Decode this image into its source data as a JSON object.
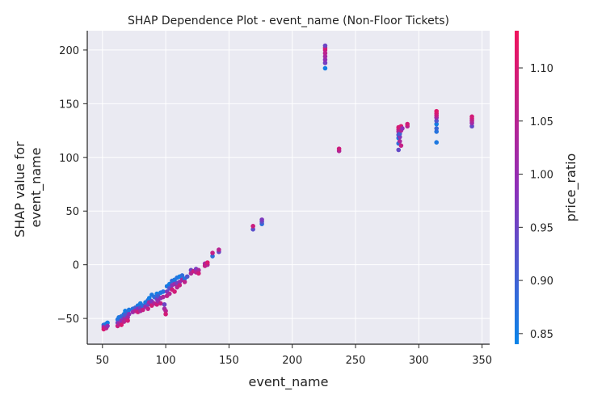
{
  "chart_data": {
    "type": "scatter",
    "title": "SHAP Dependence Plot - event_name (Non-Floor Tickets)",
    "xlabel": "event_name",
    "ylabel_lines": [
      "SHAP value for",
      "event_name"
    ],
    "xlim": [
      38,
      356
    ],
    "ylim": [
      -74,
      218
    ],
    "x_ticks": [
      50,
      100,
      150,
      200,
      250,
      300,
      350
    ],
    "y_ticks": [
      -50,
      0,
      50,
      100,
      150,
      200
    ],
    "grid": true,
    "colorbar": {
      "label": "price_ratio",
      "range": [
        0.84,
        1.135
      ],
      "ticks": [
        0.85,
        0.9,
        0.95,
        1.0,
        1.05,
        1.1
      ],
      "tick_labels": [
        "0.85",
        "0.90",
        "0.95",
        "1.00",
        "1.05",
        "1.10"
      ],
      "color_low": "#0a84e8",
      "color_mid": "#8e2fb8",
      "color_high": "#f0135c"
    },
    "points": [
      [
        51,
        -56,
        0.88
      ],
      [
        51,
        -58,
        1.02
      ],
      [
        51,
        -60,
        1.1
      ],
      [
        53,
        -55,
        0.86
      ],
      [
        53,
        -59,
        1.05
      ],
      [
        54,
        -54,
        0.85
      ],
      [
        54,
        -57,
        1.0
      ],
      [
        62,
        -51,
        0.87
      ],
      [
        62,
        -54,
        0.95
      ],
      [
        62,
        -57,
        1.08
      ],
      [
        63,
        -49,
        0.86
      ],
      [
        63,
        -55,
        1.03
      ],
      [
        65,
        -48,
        0.88
      ],
      [
        65,
        -52,
        1.0
      ],
      [
        65,
        -56,
        1.1
      ],
      [
        67,
        -46,
        0.86
      ],
      [
        67,
        -50,
        0.97
      ],
      [
        67,
        -53,
        1.06
      ],
      [
        68,
        -43,
        0.85
      ],
      [
        68,
        -47,
        0.92
      ],
      [
        68,
        -51,
        1.04
      ],
      [
        70,
        -44,
        0.89
      ],
      [
        70,
        -49,
        1.02
      ],
      [
        70,
        -52,
        1.09
      ],
      [
        71,
        -42,
        0.86
      ],
      [
        71,
        -46,
        0.99
      ],
      [
        74,
        -41,
        0.87
      ],
      [
        74,
        -44,
        1.01
      ],
      [
        76,
        -40,
        0.9
      ],
      [
        76,
        -43,
        1.05
      ],
      [
        78,
        -38,
        0.86
      ],
      [
        78,
        -41,
        0.98
      ],
      [
        78,
        -44,
        1.08
      ],
      [
        80,
        -36,
        0.85
      ],
      [
        80,
        -40,
        0.94
      ],
      [
        80,
        -43,
        1.03
      ],
      [
        82,
        -38,
        0.88
      ],
      [
        82,
        -42,
        1.07
      ],
      [
        84,
        -35,
        0.86
      ],
      [
        84,
        -39,
        1.0
      ],
      [
        86,
        -33,
        0.87
      ],
      [
        86,
        -37,
        0.95
      ],
      [
        86,
        -41,
        1.06
      ],
      [
        87,
        -31,
        0.85
      ],
      [
        87,
        -35,
        1.02
      ],
      [
        89,
        -28,
        0.86
      ],
      [
        89,
        -34,
        0.97
      ],
      [
        89,
        -38,
        1.09
      ],
      [
        91,
        -30,
        0.88
      ],
      [
        91,
        -36,
        1.04
      ],
      [
        93,
        -27,
        0.85
      ],
      [
        93,
        -32,
        0.96
      ],
      [
        93,
        -37,
        1.08
      ],
      [
        94,
        -29,
        0.9
      ],
      [
        94,
        -34,
        1.01
      ],
      [
        96,
        -26,
        0.86
      ],
      [
        96,
        -31,
        0.99
      ],
      [
        96,
        -36,
        1.07
      ],
      [
        98,
        -25,
        0.87
      ],
      [
        98,
        -30,
        1.03
      ],
      [
        99,
        -37,
        0.95
      ],
      [
        99,
        -41,
        1.02
      ],
      [
        100,
        -43,
        1.05
      ],
      [
        100,
        -46,
        1.09
      ],
      [
        101,
        -20,
        0.86
      ],
      [
        101,
        -25,
        0.97
      ],
      [
        101,
        -29,
        1.06
      ],
      [
        103,
        -18,
        0.85
      ],
      [
        103,
        -22,
        0.93
      ],
      [
        103,
        -27,
        1.04
      ],
      [
        105,
        -15,
        0.88
      ],
      [
        105,
        -19,
        0.98
      ],
      [
        105,
        -23,
        1.08
      ],
      [
        107,
        -14,
        0.86
      ],
      [
        107,
        -18,
        1.01
      ],
      [
        107,
        -25,
        1.09
      ],
      [
        109,
        -12,
        0.87
      ],
      [
        109,
        -17,
        0.96
      ],
      [
        109,
        -21,
        1.05
      ],
      [
        111,
        -11,
        0.85
      ],
      [
        111,
        -16,
        0.99
      ],
      [
        111,
        -19,
        1.07
      ],
      [
        113,
        -10,
        0.88
      ],
      [
        113,
        -14,
        1.03
      ],
      [
        115,
        -13,
        0.86
      ],
      [
        115,
        -16,
        1.06
      ],
      [
        117,
        -11,
        0.92
      ],
      [
        120,
        -5,
        0.95
      ],
      [
        120,
        -8,
        1.04
      ],
      [
        122,
        -6,
        1.08
      ],
      [
        124,
        -4,
        0.97
      ],
      [
        124,
        -7,
        1.05
      ],
      [
        126,
        -5,
        1.03
      ],
      [
        126,
        -8,
        1.09
      ],
      [
        131,
        1,
        1.02
      ],
      [
        131,
        -1,
        1.07
      ],
      [
        133,
        0,
        1.04
      ],
      [
        133,
        2,
        1.1
      ],
      [
        137,
        8,
        0.88
      ],
      [
        137,
        11,
        1.07
      ],
      [
        142,
        12,
        0.95
      ],
      [
        142,
        14,
        1.05
      ],
      [
        169,
        33,
        0.93
      ],
      [
        169,
        36,
        1.08
      ],
      [
        176,
        38,
        0.88
      ],
      [
        176,
        40,
        0.93
      ],
      [
        176,
        42,
        0.97
      ],
      [
        226,
        183,
        0.85
      ],
      [
        226,
        188,
        0.96
      ],
      [
        226,
        191,
        0.99
      ],
      [
        226,
        194,
        1.02
      ],
      [
        226,
        197,
        1.05
      ],
      [
        226,
        200,
        1.07
      ],
      [
        226,
        202,
        1.1
      ],
      [
        226,
        204,
        0.95
      ],
      [
        237,
        106,
        1.04
      ],
      [
        237,
        108,
        1.08
      ],
      [
        284,
        107,
        0.94
      ],
      [
        284,
        113,
        0.88
      ],
      [
        284,
        118,
        0.86
      ],
      [
        284,
        121,
        0.92
      ],
      [
        284,
        124,
        1.02
      ],
      [
        284,
        126,
        1.06
      ],
      [
        284,
        128,
        1.09
      ],
      [
        285,
        115,
        1.03
      ],
      [
        285,
        119,
        0.98
      ],
      [
        285,
        122,
        0.9
      ],
      [
        286,
        111,
        1.07
      ],
      [
        286,
        125,
        1.04
      ],
      [
        286,
        129,
        1.1
      ],
      [
        287,
        127,
        0.99
      ],
      [
        291,
        129,
        1.05
      ],
      [
        291,
        131,
        1.09
      ],
      [
        314,
        114,
        0.86
      ],
      [
        314,
        124,
        0.87
      ],
      [
        314,
        127,
        0.89
      ],
      [
        314,
        131,
        0.85
      ],
      [
        314,
        134,
        0.92
      ],
      [
        314,
        137,
        1.0
      ],
      [
        314,
        139,
        1.06
      ],
      [
        314,
        141,
        1.09
      ],
      [
        314,
        143,
        1.11
      ],
      [
        342,
        129,
        0.94
      ],
      [
        342,
        132,
        1.01
      ],
      [
        342,
        134,
        1.04
      ],
      [
        342,
        136,
        1.07
      ],
      [
        342,
        138,
        1.09
      ]
    ]
  }
}
